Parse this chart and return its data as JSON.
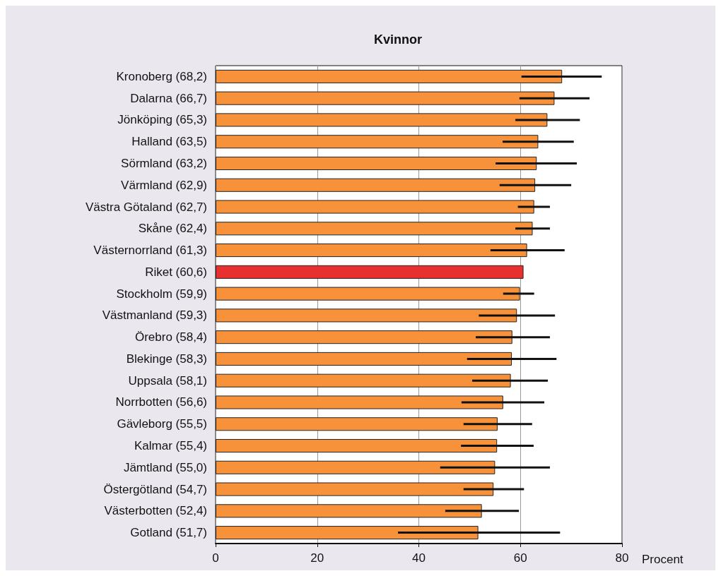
{
  "chart_data": {
    "type": "bar",
    "orientation": "horizontal",
    "title": "Kvinnor",
    "xlabel": "Procent",
    "categories": [
      "Kronoberg (68,2)",
      "Dalarna (66,7)",
      "Jönköping (65,3)",
      "Halland (63,5)",
      "Sörmland (63,2)",
      "Värmland (62,9)",
      "Västra Götaland (62,7)",
      "Skåne (62,4)",
      "Västernorrland (61,3)",
      "Riket (60,6)",
      "Stockholm (59,9)",
      "Västmanland (59,3)",
      "Örebro (58,4)",
      "Blekinge (58,3)",
      "Uppsala (58,1)",
      "Norrbotten (56,6)",
      "Gävleborg (55,5)",
      "Kalmar (55,4)",
      "Jämtland (55,0)",
      "Östergötland (54,7)",
      "Västerbotten (52,4)",
      "Gotland (51,7)"
    ],
    "values": [
      68.2,
      66.7,
      65.3,
      63.5,
      63.2,
      62.9,
      62.7,
      62.4,
      61.3,
      60.6,
      59.9,
      59.3,
      58.4,
      58.3,
      58.1,
      56.6,
      55.5,
      55.4,
      55.0,
      54.7,
      52.4,
      51.7
    ],
    "colors": [
      "#f7923a",
      "#f7923a",
      "#f7923a",
      "#f7923a",
      "#f7923a",
      "#f7923a",
      "#f7923a",
      "#f7923a",
      "#f7923a",
      "#e8312f",
      "#f7923a",
      "#f7923a",
      "#f7923a",
      "#f7923a",
      "#f7923a",
      "#f7923a",
      "#f7923a",
      "#f7923a",
      "#f7923a",
      "#f7923a",
      "#f7923a",
      "#f7923a"
    ],
    "errors": [
      [
        60.2,
        76.0
      ],
      [
        59.8,
        73.6
      ],
      [
        59.0,
        71.7
      ],
      [
        56.5,
        70.5
      ],
      [
        55.1,
        71.1
      ],
      [
        55.9,
        70.0
      ],
      [
        59.5,
        65.8
      ],
      [
        59.0,
        65.8
      ],
      [
        54.1,
        68.7
      ],
      null,
      [
        56.6,
        62.7
      ],
      [
        51.8,
        66.8
      ],
      [
        51.2,
        65.8
      ],
      [
        49.5,
        67.1
      ],
      [
        50.5,
        65.4
      ],
      [
        48.4,
        64.7
      ],
      [
        48.8,
        62.3
      ],
      [
        48.3,
        62.6
      ],
      [
        44.2,
        65.8
      ],
      [
        48.8,
        60.7
      ],
      [
        45.2,
        59.7
      ],
      [
        35.9,
        67.8
      ]
    ],
    "xlim": [
      0,
      80
    ],
    "xticks": [
      0,
      20,
      40,
      60,
      80
    ],
    "grid": "x"
  }
}
